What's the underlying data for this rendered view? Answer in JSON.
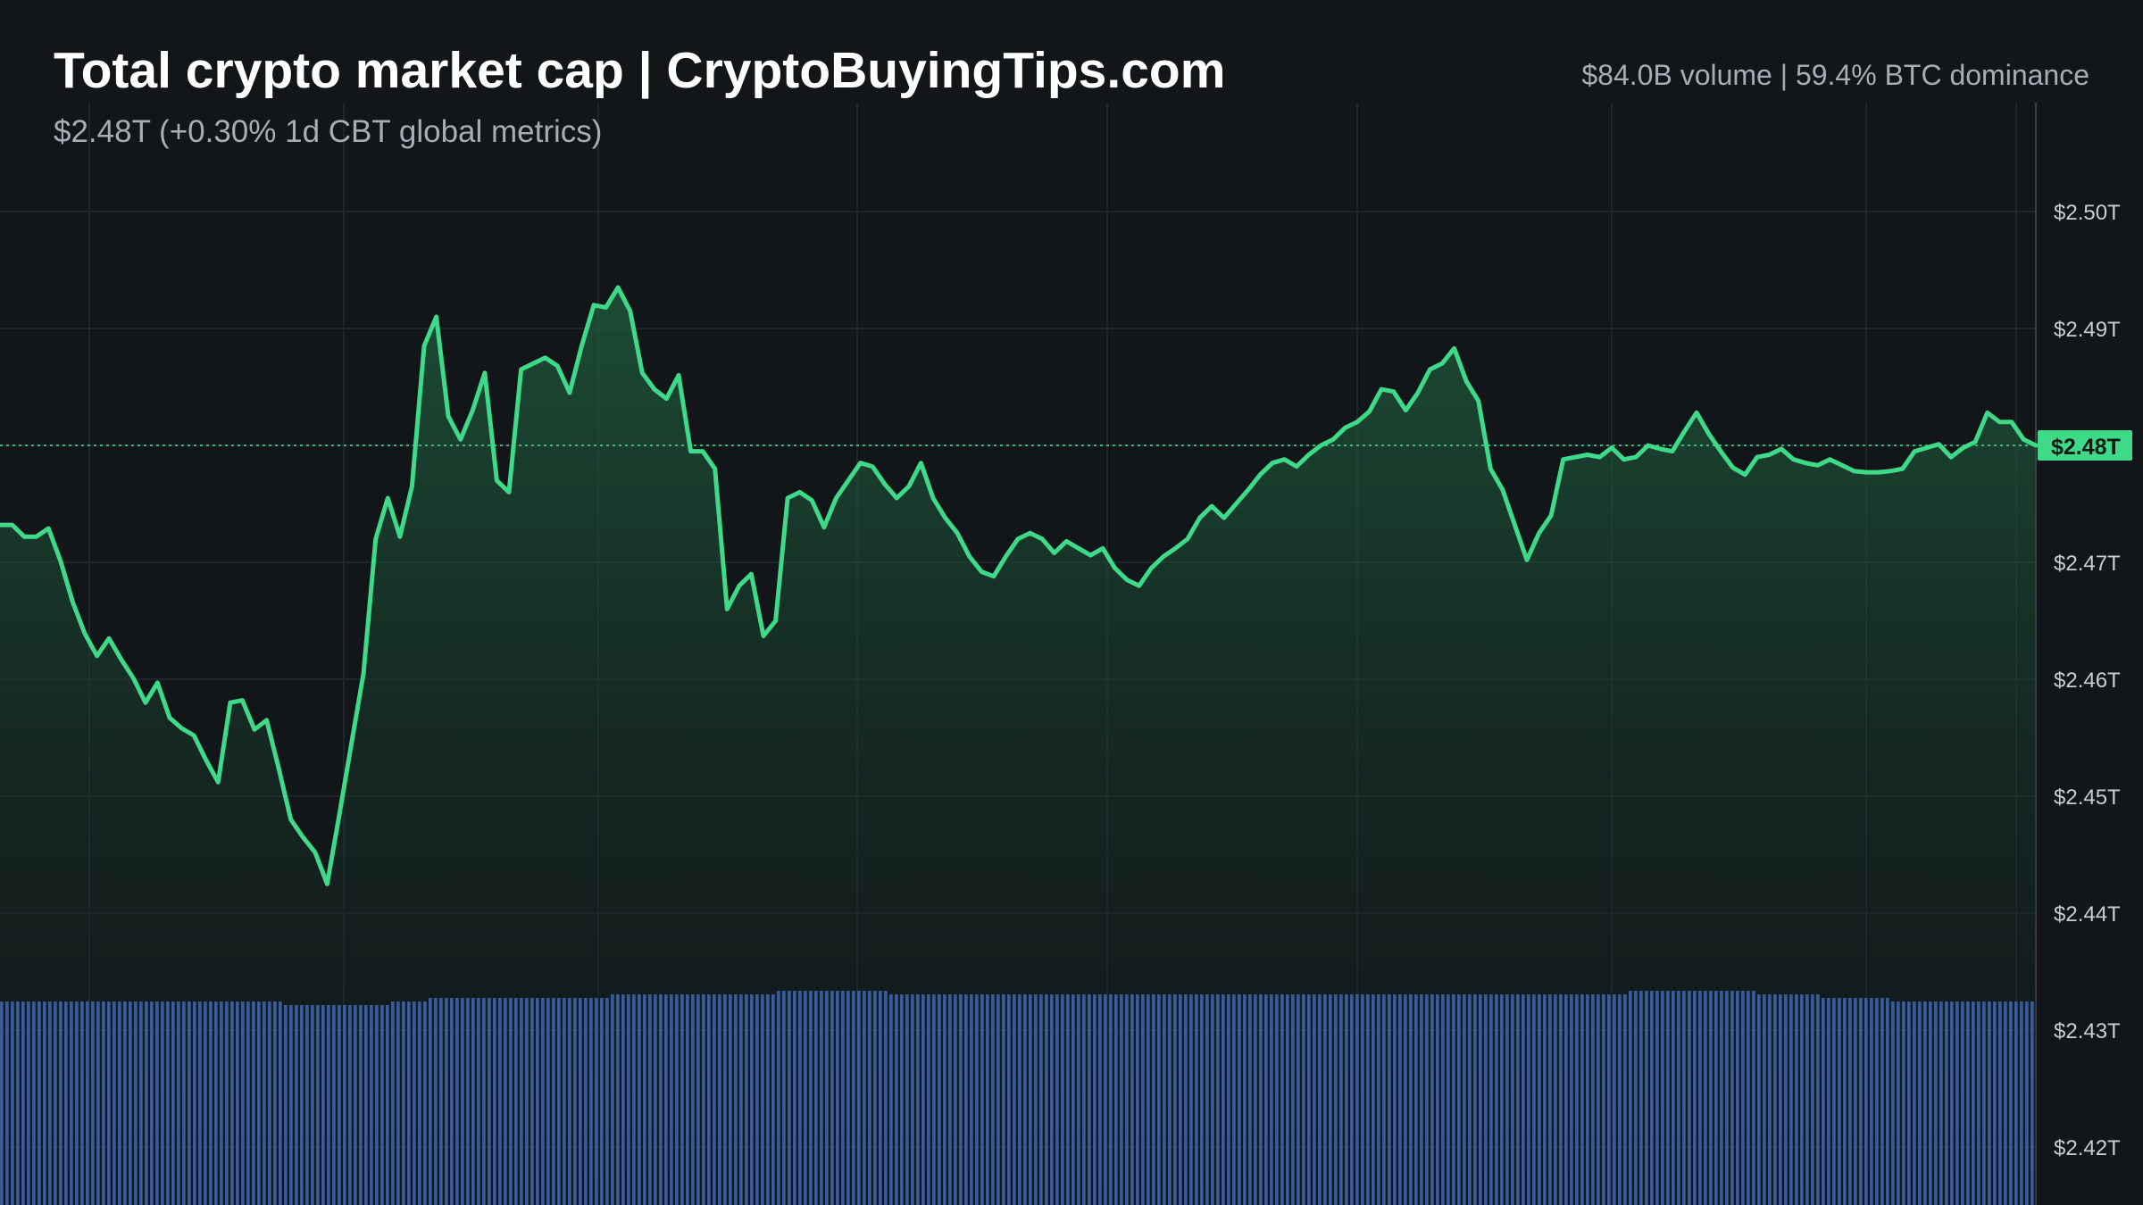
{
  "header": {
    "title": "Total crypto market cap | CryptoBuyingTips.com",
    "subtitle": "$2.48T (+0.30% 1d CBT global metrics)",
    "stats": "$84.0B volume | 59.4% BTC dominance"
  },
  "colors": {
    "background": "#121619",
    "line": "#3fd98a",
    "area_top": "#1e5a3c",
    "volume": "#3b5a9a",
    "grid": "#20252b",
    "axis_text": "#c9ced4",
    "current_label_bg": "#3fd98a"
  },
  "chart_data": {
    "type": "area",
    "title": "Total crypto market cap | CryptoBuyingTips.com",
    "y_unit": "T (USD trillions)",
    "ylim": [
      2.418,
      2.506
    ],
    "y_ticks": [
      2.5,
      2.49,
      2.48,
      2.47,
      2.46,
      2.45,
      2.44,
      2.43,
      2.42
    ],
    "y_tick_labels": [
      "$2.50T",
      "$2.49T",
      "$2.48T",
      "$2.47T",
      "$2.46T",
      "$2.45T",
      "$2.44T",
      "$2.43T",
      "$2.42T"
    ],
    "current_value": 2.48,
    "current_label": "$2.48T",
    "grid": true,
    "series": [
      {
        "values": [
          2.4732,
          2.4732,
          2.4722,
          2.4722,
          2.4729,
          2.4701,
          2.4666,
          2.4639,
          2.462,
          2.4635,
          2.4617,
          2.4601,
          2.458,
          2.4597,
          2.4567,
          2.4558,
          2.4552,
          2.4531,
          2.4512,
          2.458,
          2.4582,
          2.4557,
          2.4565,
          2.4524,
          2.448,
          2.4465,
          2.4452,
          2.4425,
          2.4484,
          2.4545,
          2.4605,
          2.472,
          2.4755,
          2.4722,
          2.4765,
          2.4885,
          2.491,
          2.4825,
          2.4805,
          2.483,
          2.4862,
          2.477,
          2.476,
          2.4865,
          2.487,
          2.4875,
          2.4868,
          2.4845,
          2.4885,
          2.492,
          2.4918,
          2.4935,
          2.4915,
          2.4862,
          2.4848,
          2.484,
          2.486,
          2.4795,
          2.4795,
          2.478,
          2.466,
          2.468,
          2.469,
          2.4637,
          2.465,
          2.4755,
          2.476,
          2.4753,
          2.473,
          2.4755,
          2.477,
          2.4785,
          2.4782,
          2.4767,
          2.4755,
          2.4765,
          2.4785,
          2.4755,
          2.4738,
          2.4725,
          2.4705,
          2.4692,
          2.4688,
          2.4705,
          2.472,
          2.4725,
          2.472,
          2.4708,
          2.4718,
          2.4712,
          2.4706,
          2.4712,
          2.4695,
          2.4685,
          2.468,
          2.4695,
          2.4705,
          2.4712,
          2.472,
          2.4738,
          2.4748,
          2.4738,
          2.475,
          2.4762,
          2.4775,
          2.4785,
          2.4788,
          2.4782,
          2.4792,
          2.48,
          2.4805,
          2.4815,
          2.482,
          2.4829,
          2.4848,
          2.4846,
          2.483,
          2.4845,
          2.4865,
          2.487,
          2.4883,
          2.4855,
          2.4838,
          2.478,
          2.4762,
          2.4732,
          2.4702,
          2.4725,
          2.474,
          2.4788,
          2.479,
          2.4792,
          2.479,
          2.4798,
          2.4788,
          2.479,
          2.48,
          2.4797,
          2.4795,
          2.4812,
          2.4828,
          2.481,
          2.4795,
          2.4781,
          2.4775,
          2.479,
          2.4792,
          2.4797,
          2.4788,
          2.4785,
          2.4783,
          2.4788,
          2.4783,
          2.4778,
          2.4777,
          2.4777,
          2.4778,
          2.478,
          2.4795,
          2.4798,
          2.4801,
          2.479,
          2.4798,
          2.4803,
          2.4828,
          2.482,
          2.482,
          2.4805,
          2.48
        ]
      }
    ],
    "volume": {
      "values": [
        0.57,
        0.57,
        0.57,
        0.57,
        0.57,
        0.57,
        0.57,
        0.57,
        0.57,
        0.57,
        0.57,
        0.57,
        0.57,
        0.57,
        0.57,
        0.57,
        0.57,
        0.57,
        0.57,
        0.57,
        0.57,
        0.57,
        0.57,
        0.56,
        0.56,
        0.56,
        0.56,
        0.56,
        0.56,
        0.56,
        0.56,
        0.56,
        0.57,
        0.57,
        0.57,
        0.58,
        0.58,
        0.58,
        0.58,
        0.58,
        0.58,
        0.58,
        0.58,
        0.58,
        0.58,
        0.58,
        0.58,
        0.58,
        0.58,
        0.58,
        0.59,
        0.59,
        0.59,
        0.59,
        0.59,
        0.59,
        0.59,
        0.59,
        0.59,
        0.59,
        0.59,
        0.59,
        0.59,
        0.59,
        0.6,
        0.6,
        0.6,
        0.6,
        0.6,
        0.6,
        0.6,
        0.6,
        0.6,
        0.59,
        0.59,
        0.59,
        0.59,
        0.59,
        0.59,
        0.59,
        0.59,
        0.59,
        0.59,
        0.59,
        0.59,
        0.59,
        0.59,
        0.59,
        0.59,
        0.59,
        0.59,
        0.59,
        0.59,
        0.59,
        0.59,
        0.59,
        0.59,
        0.59,
        0.59,
        0.59,
        0.59,
        0.59,
        0.59,
        0.59,
        0.59,
        0.59,
        0.59,
        0.59,
        0.59,
        0.59,
        0.59,
        0.59,
        0.59,
        0.59,
        0.59,
        0.59,
        0.59,
        0.59,
        0.59,
        0.59,
        0.59,
        0.59,
        0.59,
        0.59,
        0.59,
        0.59,
        0.59,
        0.59,
        0.59,
        0.59,
        0.59,
        0.59,
        0.59,
        0.59,
        0.6,
        0.6,
        0.6,
        0.6,
        0.6,
        0.6,
        0.6,
        0.6,
        0.6,
        0.6,
        0.6,
        0.59,
        0.59,
        0.59,
        0.59,
        0.59,
        0.58,
        0.58,
        0.58,
        0.58,
        0.58,
        0.58,
        0.57,
        0.57,
        0.57,
        0.57,
        0.57,
        0.57,
        0.57,
        0.57,
        0.57,
        0.57,
        0.57,
        0.57
      ]
    }
  }
}
